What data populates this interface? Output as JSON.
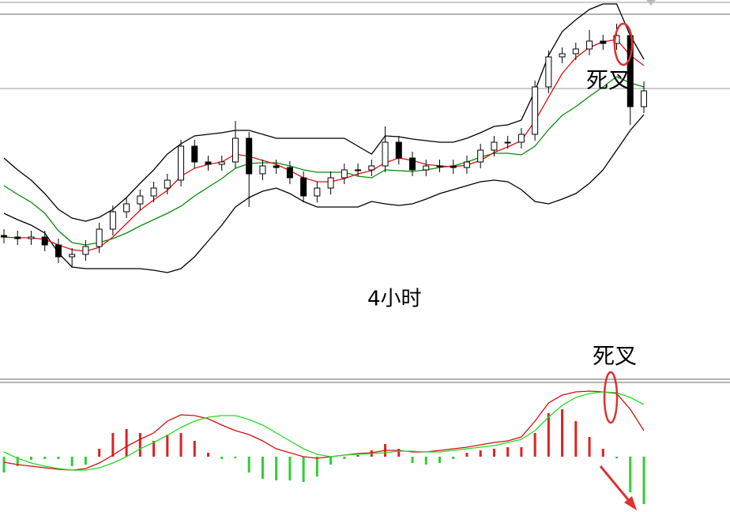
{
  "chart_data": [
    {
      "type": "candlestick",
      "label": "4小时",
      "annotation": "死叉",
      "ylim": [
        0,
        460
      ],
      "up_color": "#ffffff",
      "down_color": "#000000",
      "edge_color": "#000000",
      "open": [
        180,
        178,
        176,
        178,
        168,
        153,
        156,
        166,
        188,
        210,
        220,
        230,
        240,
        250,
        293,
        273,
        270,
        273,
        303,
        258,
        268,
        266,
        253,
        230,
        240,
        253,
        263,
        263,
        268,
        298,
        278,
        263,
        268,
        268,
        266,
        273,
        288,
        298,
        298,
        308,
        368,
        406,
        410,
        416,
        426,
        423,
        433,
        343
      ],
      "high": [
        188,
        186,
        186,
        186,
        176,
        164,
        174,
        196,
        218,
        228,
        238,
        248,
        258,
        301,
        301,
        281,
        281,
        325,
        311,
        276,
        276,
        274,
        261,
        248,
        261,
        271,
        271,
        276,
        318,
        306,
        286,
        276,
        276,
        276,
        281,
        296,
        306,
        306,
        316,
        376,
        414,
        418,
        424,
        440,
        434,
        448,
        441,
        375
      ],
      "low": [
        170,
        168,
        168,
        160,
        145,
        140,
        148,
        158,
        180,
        202,
        212,
        222,
        232,
        242,
        265,
        262,
        262,
        265,
        216,
        250,
        258,
        245,
        222,
        222,
        232,
        245,
        255,
        255,
        260,
        270,
        255,
        255,
        260,
        258,
        258,
        265,
        280,
        290,
        290,
        300,
        360,
        398,
        402,
        408,
        415,
        415,
        320,
        335
      ],
      "close": [
        178,
        176,
        178,
        168,
        153,
        156,
        166,
        188,
        210,
        220,
        230,
        240,
        250,
        293,
        273,
        270,
        273,
        303,
        258,
        268,
        266,
        253,
        230,
        240,
        253,
        263,
        263,
        268,
        298,
        278,
        263,
        268,
        268,
        266,
        273,
        288,
        298,
        298,
        308,
        368,
        406,
        410,
        416,
        426,
        423,
        433,
        343,
        363
      ],
      "series": [
        {
          "color": "#000000",
          "values": [
            278,
            263,
            250,
            233,
            213,
            202,
            198,
            203,
            213,
            228,
            246,
            263,
            283,
            296,
            306,
            308,
            310,
            313,
            313,
            308,
            303,
            303,
            303,
            303,
            303,
            303,
            293,
            283,
            306,
            305,
            302,
            300,
            298,
            298,
            303,
            310,
            318,
            320,
            326,
            363,
            408,
            438,
            453,
            466,
            473,
            473,
            433,
            403
          ]
        },
        {
          "color": "#000000",
          "values": [
            208,
            200,
            193,
            183,
            158,
            140,
            138,
            138,
            138,
            138,
            138,
            136,
            133,
            138,
            153,
            173,
            193,
            216,
            228,
            236,
            240,
            233,
            223,
            216,
            216,
            216,
            216,
            223,
            220,
            218,
            220,
            226,
            233,
            238,
            243,
            248,
            250,
            248,
            238,
            223,
            220,
            226,
            233,
            246,
            263,
            288,
            313,
            333
          ]
        },
        {
          "color": "#0a8a0a",
          "values": [
            243,
            232,
            222,
            208,
            186,
            171,
            168,
            171,
            176,
            183,
            192,
            200,
            208,
            217,
            230,
            241,
            252,
            265,
            271,
            272,
            272,
            268,
            263,
            260,
            260,
            260,
            255,
            253,
            263,
            262,
            261,
            263,
            266,
            268,
            273,
            279,
            284,
            284,
            282,
            293,
            314,
            332,
            343,
            356,
            368,
            381,
            373,
            368
          ]
        },
        {
          "color": "#e01010",
          "values": [
            178,
            177,
            177,
            175,
            168,
            162,
            160,
            165,
            178,
            195,
            212,
            225,
            237,
            255,
            265,
            270,
            273,
            283,
            280,
            275,
            270,
            262,
            253,
            248,
            248,
            252,
            258,
            262,
            272,
            278,
            275,
            270,
            268,
            267,
            269,
            275,
            285,
            292,
            300,
            325,
            355,
            385,
            405,
            418,
            425,
            428,
            408,
            395
          ]
        }
      ]
    },
    {
      "type": "macd",
      "annotation": "死叉",
      "ylim": [
        -70,
        93
      ],
      "histogram": {
        "up_color": "#e02020",
        "down_color": "#33cc33",
        "values": [
          -20,
          -12,
          -4,
          -3,
          -3,
          -12,
          -10,
          10,
          30,
          35,
          30,
          20,
          28,
          30,
          20,
          5,
          -3,
          -2,
          -20,
          -28,
          -30,
          -30,
          -32,
          -25,
          -10,
          -3,
          2,
          8,
          16,
          10,
          -8,
          -10,
          -8,
          -3,
          5,
          8,
          10,
          12,
          12,
          30,
          55,
          60,
          45,
          25,
          10,
          -2,
          -45,
          -60
        ]
      },
      "series": [
        {
          "color": "#d01010",
          "values": [
            -7,
            -10,
            -12,
            -14,
            -16,
            -17,
            -15,
            -8,
            2,
            13,
            22,
            30,
            45,
            53,
            52,
            48,
            40,
            33,
            28,
            20,
            10,
            5,
            0,
            -2,
            0,
            2,
            4,
            5,
            8,
            8,
            6,
            6,
            8,
            10,
            12,
            15,
            18,
            20,
            25,
            45,
            68,
            78,
            82,
            83,
            82,
            80,
            60,
            33
          ]
        },
        {
          "color": "#22dd22",
          "values": [
            6,
            -2,
            -8,
            -12,
            -15,
            -17,
            -17,
            -14,
            -8,
            0,
            10,
            18,
            27,
            37,
            45,
            50,
            52,
            52,
            47,
            40,
            30,
            20,
            10,
            3,
            0,
            2,
            3,
            4,
            5,
            7,
            7,
            6,
            6,
            8,
            10,
            12,
            14,
            18,
            22,
            33,
            50,
            65,
            75,
            80,
            82,
            81,
            75,
            66
          ]
        }
      ]
    }
  ]
}
